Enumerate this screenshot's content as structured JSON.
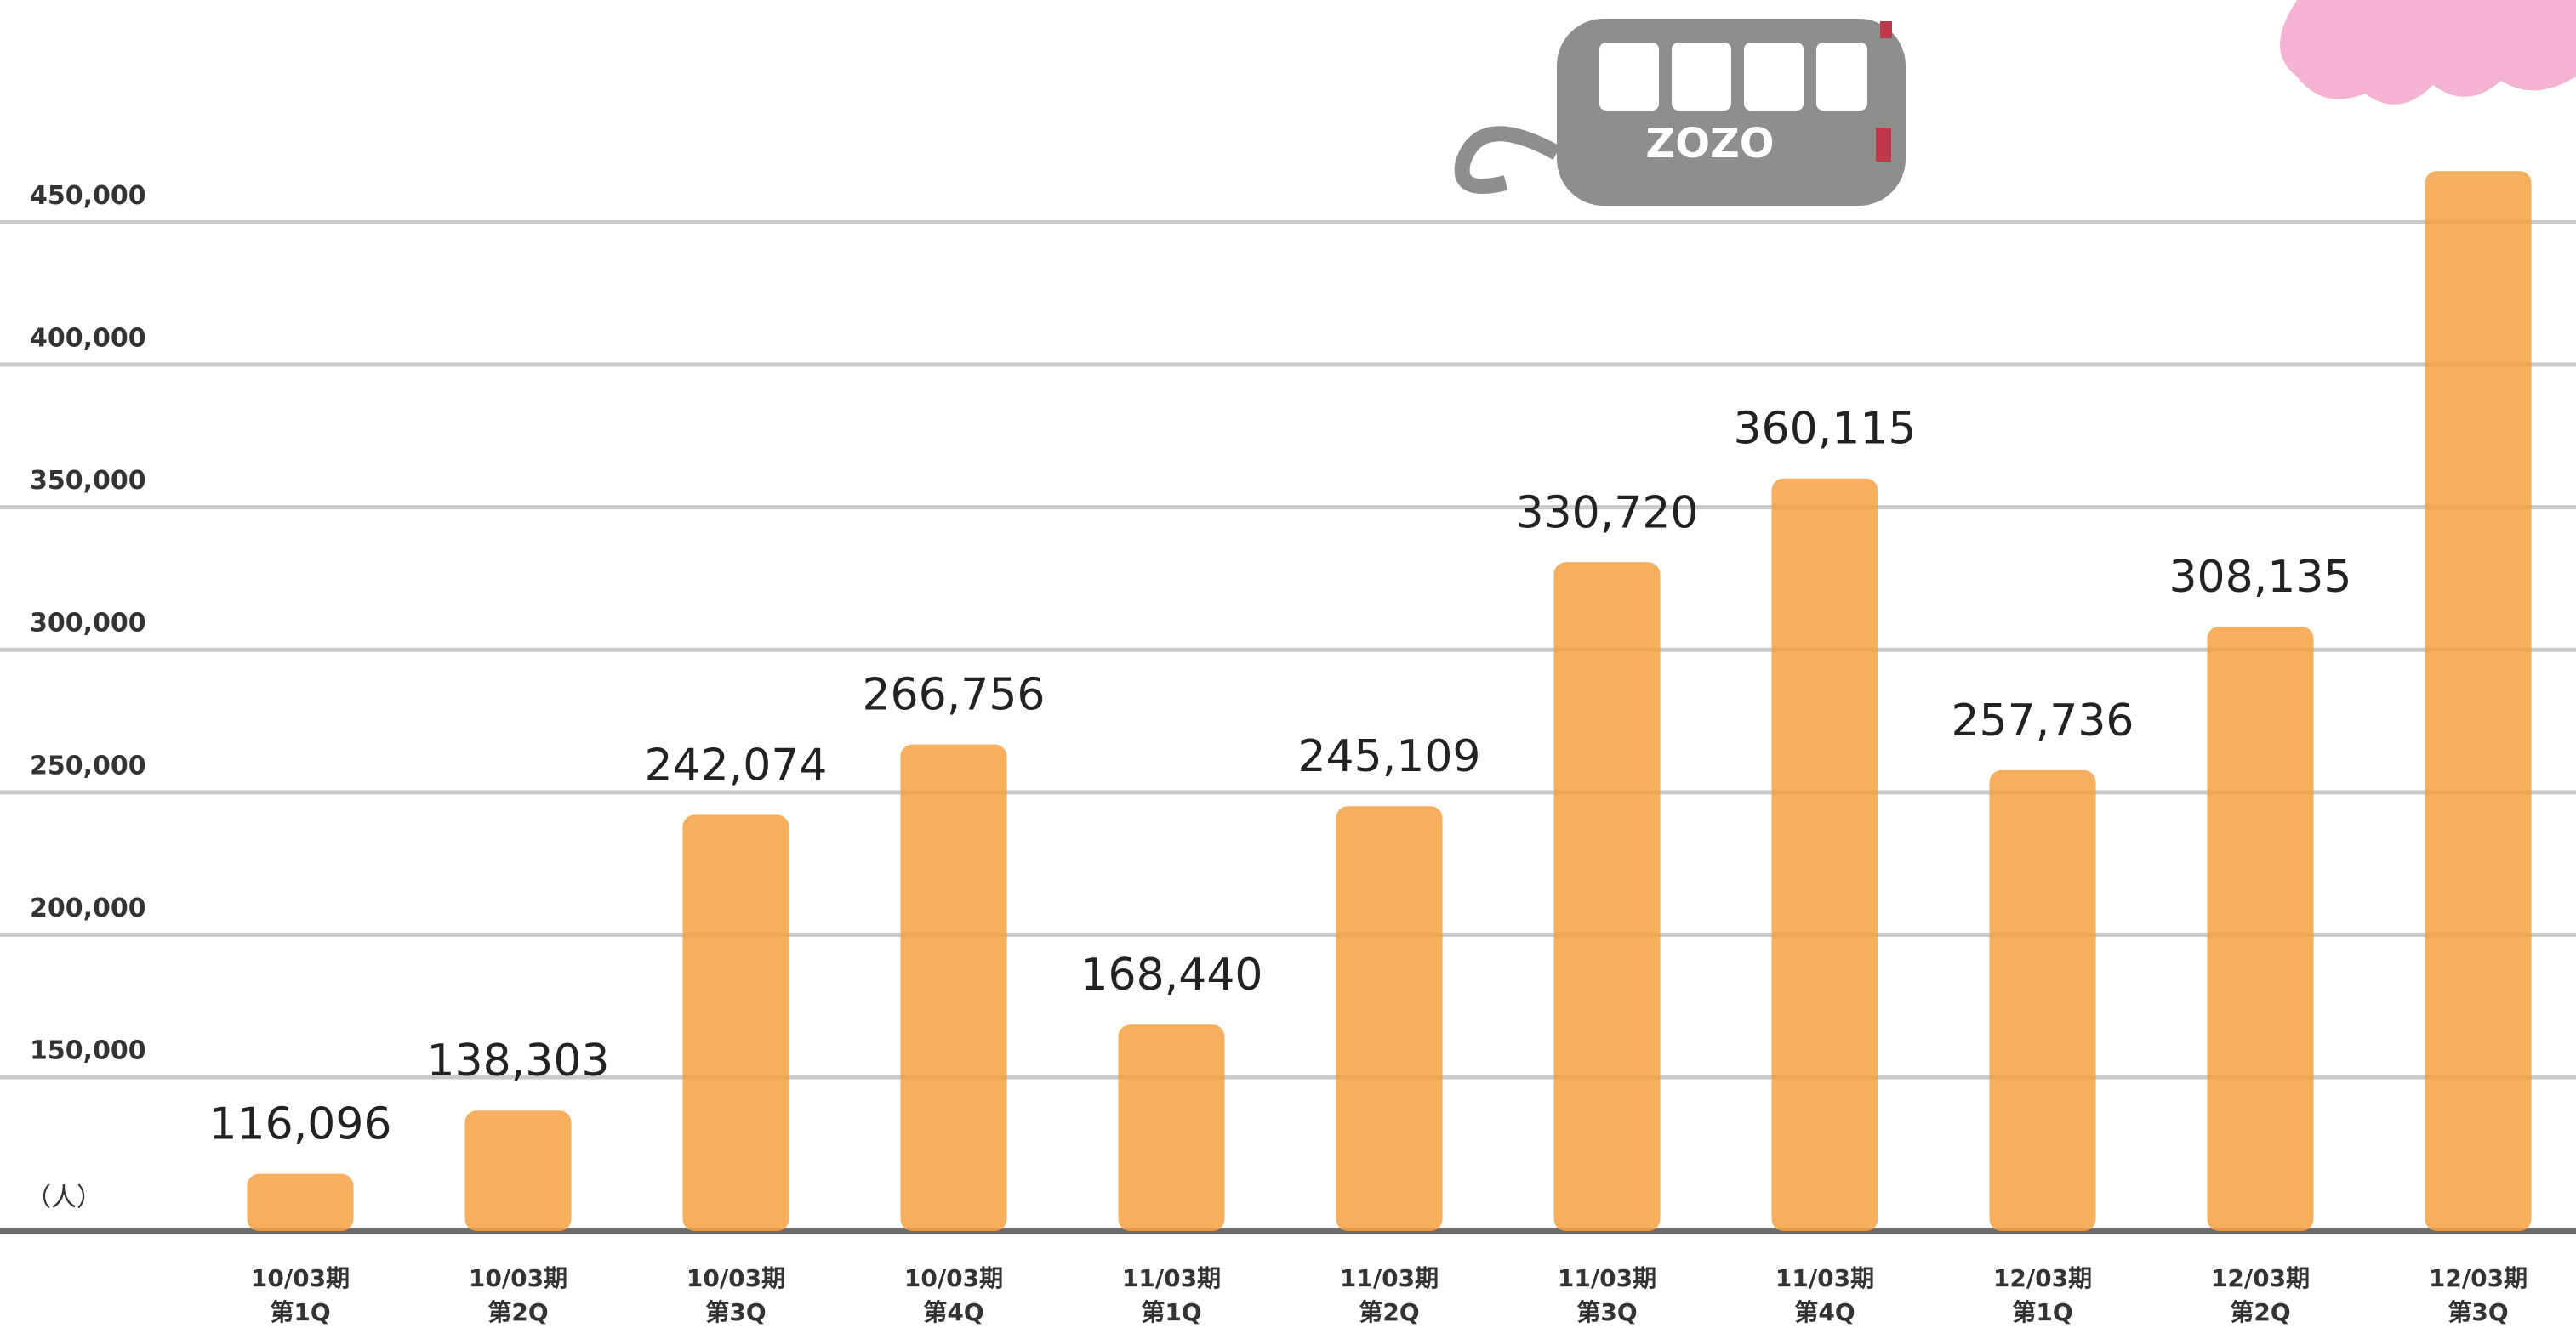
{
  "chart_data": {
    "type": "bar",
    "y_label": "（人）",
    "annotations": [
      "ZOZO"
    ],
    "categories": [
      [
        "10/03期",
        "第1Q"
      ],
      [
        "10/03期",
        "第2Q"
      ],
      [
        "10/03期",
        "第3Q"
      ],
      [
        "10/03期",
        "第4Q"
      ],
      [
        "11/03期",
        "第1Q"
      ],
      [
        "11/03期",
        "第2Q"
      ],
      [
        "11/03期",
        "第3Q"
      ],
      [
        "11/03期",
        "第4Q"
      ],
      [
        "12/03期",
        "第1Q"
      ],
      [
        "12/03期",
        "第2Q"
      ],
      [
        "12/03期",
        "第3Q"
      ]
    ],
    "values": [
      116096,
      138303,
      242074,
      266756,
      168440,
      245109,
      330720,
      360115,
      257736,
      308135,
      468000
    ],
    "value_labels": [
      "116,096",
      "138,303",
      "242,074",
      "266,756",
      "168,440",
      "245,109",
      "330,720",
      "360,115",
      "257,736",
      "308,135",
      null
    ],
    "color": "#f5a043",
    "ylim": [
      96000,
      528000
    ],
    "yticks": [
      {
        "value": 150000,
        "label": "150,000"
      },
      {
        "value": 200000,
        "label": "200,000"
      },
      {
        "value": 250000,
        "label": "250,000"
      },
      {
        "value": 300000,
        "label": "300,000"
      },
      {
        "value": 350000,
        "label": "350,000"
      },
      {
        "value": 400000,
        "label": "400,000"
      },
      {
        "value": 450000,
        "label": "450,000"
      }
    ],
    "grid": true
  }
}
